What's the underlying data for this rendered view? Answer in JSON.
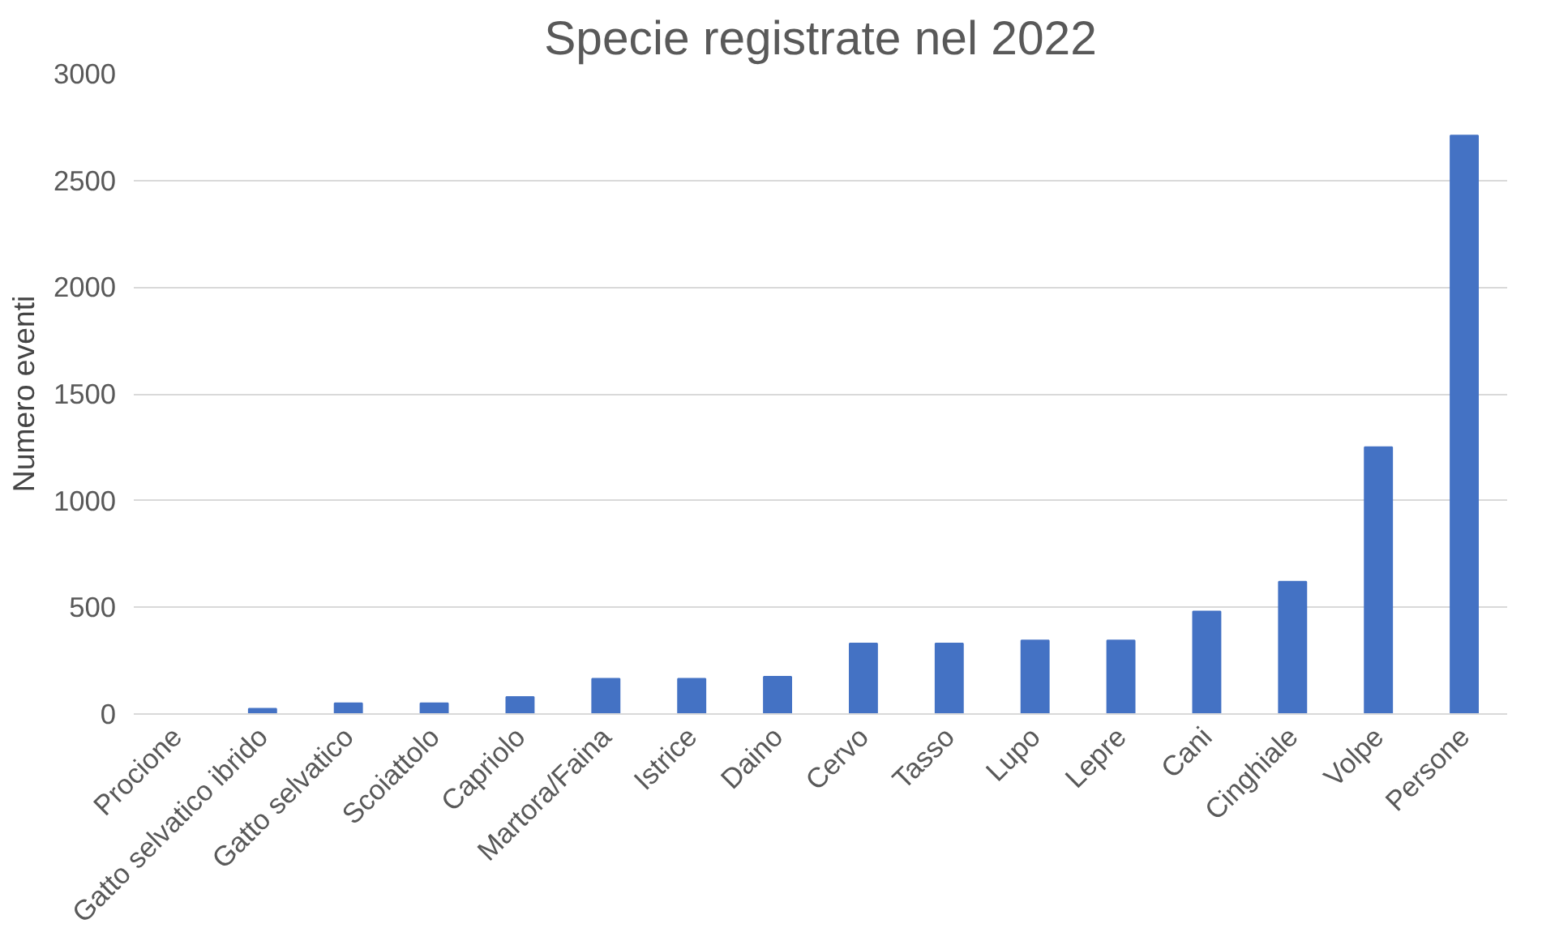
{
  "chart_data": {
    "type": "bar",
    "title": "Specie registrate nel 2022",
    "ylabel": "Numero eventi",
    "categories": [
      "Procione",
      "Gatto selvatico ibrido",
      "Gatto selvatico",
      "Scoiattolo",
      "Capriolo",
      "Martora/Faina",
      "Istrice",
      "Daino",
      "Cervo",
      "Tasso",
      "Lupo",
      "Lepre",
      "Cani",
      "Cinghiale",
      "Volpe",
      "Persone"
    ],
    "values": [
      0,
      25,
      50,
      50,
      80,
      165,
      165,
      175,
      330,
      330,
      345,
      345,
      480,
      620,
      1250,
      2710
    ],
    "color": "#4472c4",
    "ylim": [
      0,
      3000
    ],
    "yticks": [
      0,
      500,
      1000,
      1500,
      2000,
      2500,
      3000
    ],
    "grid": "y"
  }
}
